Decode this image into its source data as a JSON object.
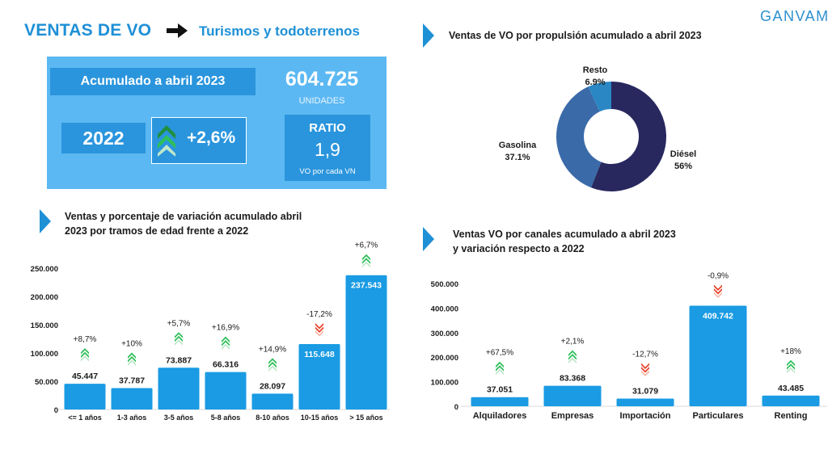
{
  "header": {
    "title": "VENTAS DE VO",
    "subtitle": "Turismos y todoterrenos",
    "logo": "GANVAM"
  },
  "kpi": {
    "accumulated_label": "Acumulado a abril 2023",
    "units_value": "604.725",
    "units_label": "UNIDADES",
    "year": "2022",
    "growth": "+2,6%",
    "ratio_label": "RATIO",
    "ratio_value": "1,9",
    "ratio_sub": "VO por cada VN"
  },
  "colors": {
    "accent": "#1e90d6",
    "panel": "#5cb8f2",
    "panel_dark": "#2a95dd",
    "bar": "#1a9be3",
    "up": "#2fbf5a",
    "down": "#e8442d",
    "donut": [
      "#28285f",
      "#3a6aa8",
      "#2a87c4"
    ]
  },
  "sections": {
    "propulsion_title": "Ventas de VO por propulsión acumulado a abril 2023",
    "age_title_1": "Ventas y porcentaje de variación acumulado abril",
    "age_title_2": "2023 por tramos de edad frente a 2022",
    "channel_title_1": "Ventas VO por canales acumulado a abril 2023",
    "channel_title_2": "y variación  respecto a 2022"
  },
  "chart_data": [
    {
      "type": "pie",
      "title": "Ventas de VO por propulsión acumulado a abril 2023",
      "categories": [
        "Diésel",
        "Gasolina",
        "Resto"
      ],
      "values": [
        56,
        37.1,
        6.9
      ],
      "labels": [
        "56%",
        "37.1%",
        "6.9%"
      ]
    },
    {
      "type": "bar",
      "title": "Ventas y porcentaje de variación acumulado abril 2023 por tramos de edad frente a 2022",
      "categories": [
        "<= 1 años",
        "1-3 años",
        "3-5 años",
        "5-8 años",
        "8-10 años",
        "10-15 años",
        "> 15 años"
      ],
      "values": [
        45447,
        37787,
        73887,
        66316,
        28097,
        115648,
        237543
      ],
      "value_labels": [
        "45.447",
        "37.787",
        "73.887",
        "66.316",
        "28.097",
        "115.648",
        "237.543"
      ],
      "variation": [
        "+8,7%",
        "+10%",
        "+5,7%",
        "+16,9%",
        "+14,9%",
        "-17,2%",
        "+6,7%"
      ],
      "direction": [
        "up",
        "up",
        "up",
        "up",
        "up",
        "down",
        "up"
      ],
      "yticks": [
        "0",
        "50.000",
        "100.000",
        "150.000",
        "200.000",
        "250.000"
      ],
      "ylim": [
        0,
        250000
      ],
      "grid": false
    },
    {
      "type": "bar",
      "title": "Ventas VO por canales acumulado a abril 2023 y variación respecto a 2022",
      "categories": [
        "Alquiladores",
        "Empresas",
        "Importación",
        "Particulares",
        "Renting"
      ],
      "values": [
        37051,
        83368,
        31079,
        409742,
        43485
      ],
      "value_labels": [
        "37.051",
        "83.368",
        "31.079",
        "409.742",
        "43.485"
      ],
      "variation": [
        "+67,5%",
        "+2,1%",
        "-12,7%",
        "-0,9%",
        "+18%"
      ],
      "direction": [
        "up",
        "up",
        "down",
        "down",
        "up"
      ],
      "yticks": [
        "0",
        "100.000",
        "200.000",
        "300.000",
        "400.000",
        "500.000"
      ],
      "ylim": [
        0,
        500000
      ],
      "grid": false
    }
  ]
}
